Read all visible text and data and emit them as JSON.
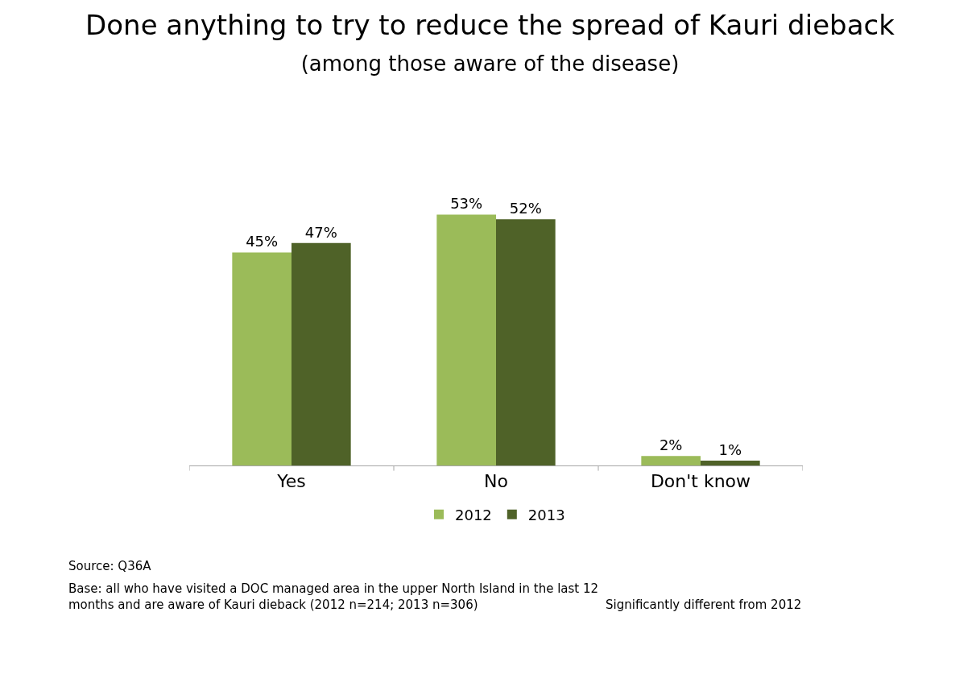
{
  "chart_data": {
    "type": "bar",
    "title": "Done anything to try to reduce the spread of Kauri dieback",
    "subtitle": "(among those aware of the disease)",
    "categories": [
      "Yes",
      "No",
      "Don't know"
    ],
    "series": [
      {
        "name": "2012",
        "color": "#9bbb59",
        "values": [
          45,
          53,
          2
        ],
        "value_labels": [
          "45%",
          "53%",
          "2%"
        ]
      },
      {
        "name": "2013",
        "color": "#4f6228",
        "values": [
          47,
          52,
          1
        ],
        "value_labels": [
          "47%",
          "52%",
          "1%"
        ]
      }
    ],
    "legend": "bottom",
    "annotations": [
      "Source: Q36A",
      "Base: all who have visited a DOC managed area in the upper North Island in the last 12 months and are aware of Kauri dieback (2012 n=214; 2013 n=306)",
      "Significantly different from 2012"
    ]
  }
}
